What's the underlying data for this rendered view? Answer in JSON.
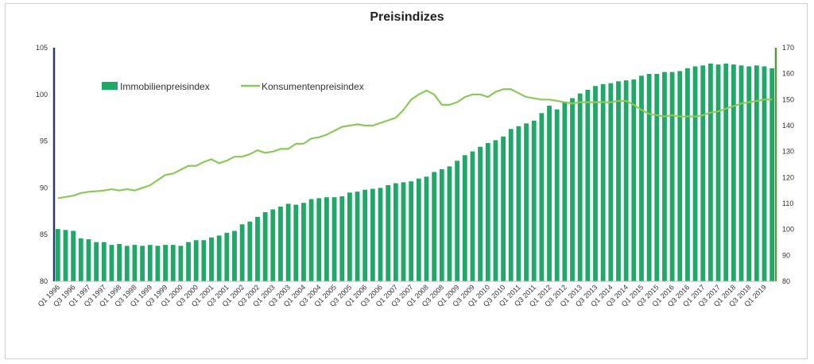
{
  "chart_data": {
    "type": "bar",
    "title": "Preisindizes",
    "legend_position": "top-left",
    "grid": false,
    "colors": {
      "bar": "#1fa868",
      "line": "#8cc85a",
      "left_axis": "#2a3a6e",
      "right_axis": "#5a9a3c"
    },
    "left_axis": {
      "range": [
        80,
        105
      ],
      "ticks": [
        "80",
        "85",
        "90",
        "95",
        "100",
        "105"
      ]
    },
    "right_axis": {
      "range": [
        80,
        170
      ],
      "ticks": [
        "80",
        "90",
        "100",
        "110",
        "120",
        "130",
        "140",
        "150",
        "160",
        "170"
      ]
    },
    "x_tick_labels": [
      "Q1 1996",
      "Q3 1996",
      "Q1 1997",
      "Q3 1997",
      "Q1 1998",
      "Q3 1998",
      "Q1 1999",
      "Q3 1999",
      "Q1 2000",
      "Q3 2000",
      "Q1 2001",
      "Q3 2001",
      "Q1 2002",
      "Q3 2002",
      "Q1 2003",
      "Q3 2003",
      "Q1 2004",
      "Q3 2004",
      "Q1 2005",
      "Q3 2005",
      "Q1 2006",
      "Q3 2006",
      "Q1 2007",
      "Q3 2007",
      "Q1 2008",
      "Q3 2008",
      "Q1 2009",
      "Q3 2009",
      "Q1 2010",
      "Q3 2010",
      "Q1 2011",
      "Q3 2011",
      "Q1 2012",
      "Q3 2012",
      "Q1 2013",
      "Q3 2013",
      "Q1 2014",
      "Q3 2014",
      "Q1 2015",
      "Q3 2015",
      "Q1 2016",
      "Q3 2016",
      "Q1 2017",
      "Q3 2017",
      "Q1 2018",
      "Q3 2018",
      "Q1 2019"
    ],
    "series": [
      {
        "name": "Immobilienpreisindex",
        "type": "bar",
        "axis": "left",
        "values": [
          85.6,
          85.5,
          85.4,
          84.6,
          84.5,
          84.2,
          84.2,
          83.9,
          84.0,
          83.8,
          83.9,
          83.8,
          83.9,
          83.8,
          83.9,
          83.9,
          83.8,
          84.2,
          84.4,
          84.4,
          84.7,
          84.9,
          85.2,
          85.4,
          86.1,
          86.4,
          86.9,
          87.4,
          87.7,
          88.0,
          88.3,
          88.2,
          88.4,
          88.8,
          88.9,
          89.0,
          89.0,
          89.1,
          89.5,
          89.6,
          89.8,
          89.9,
          90.0,
          90.3,
          90.5,
          90.6,
          90.7,
          91.0,
          91.2,
          91.7,
          92.0,
          92.3,
          92.9,
          93.5,
          93.9,
          94.4,
          94.8,
          95.1,
          95.5,
          96.3,
          96.6,
          96.9,
          97.2,
          98.0,
          98.8,
          98.4,
          99.2,
          99.6,
          100.1,
          100.5,
          100.9,
          101.1,
          101.2,
          101.4,
          101.5,
          101.6,
          102.0,
          102.2,
          102.2,
          102.4,
          102.4,
          102.5,
          102.8,
          103.0,
          103.1,
          103.3,
          103.2,
          103.3,
          103.2,
          103.1,
          103.0,
          103.1,
          103.0,
          102.8
        ]
      },
      {
        "name": "Konsumentenpreisindex",
        "type": "line",
        "axis": "right",
        "values": [
          112,
          112.5,
          113,
          114,
          114.5,
          114.7,
          115,
          115.5,
          115,
          115.5,
          115,
          116,
          117,
          119,
          121,
          121.5,
          123,
          124.5,
          124.5,
          126,
          127,
          125.5,
          126.5,
          128,
          128,
          129,
          130.5,
          129.5,
          130,
          131,
          131,
          133,
          133,
          135,
          135.5,
          136.5,
          138,
          139.5,
          140,
          140.5,
          140,
          140,
          141,
          142,
          143,
          146,
          150,
          152,
          153.5,
          152,
          148,
          148,
          149,
          151,
          152,
          152,
          151,
          153,
          154,
          154,
          152.5,
          151,
          150.5,
          150,
          150,
          149.5,
          149,
          148.5,
          149,
          149,
          149,
          149,
          149,
          149.5,
          149.5,
          148,
          146,
          144.5,
          144,
          143.5,
          144,
          143.5,
          143.5,
          143.5,
          144,
          145,
          145.5,
          146.5,
          147.5,
          148.5,
          149,
          149.5,
          150,
          150
        ]
      }
    ]
  }
}
